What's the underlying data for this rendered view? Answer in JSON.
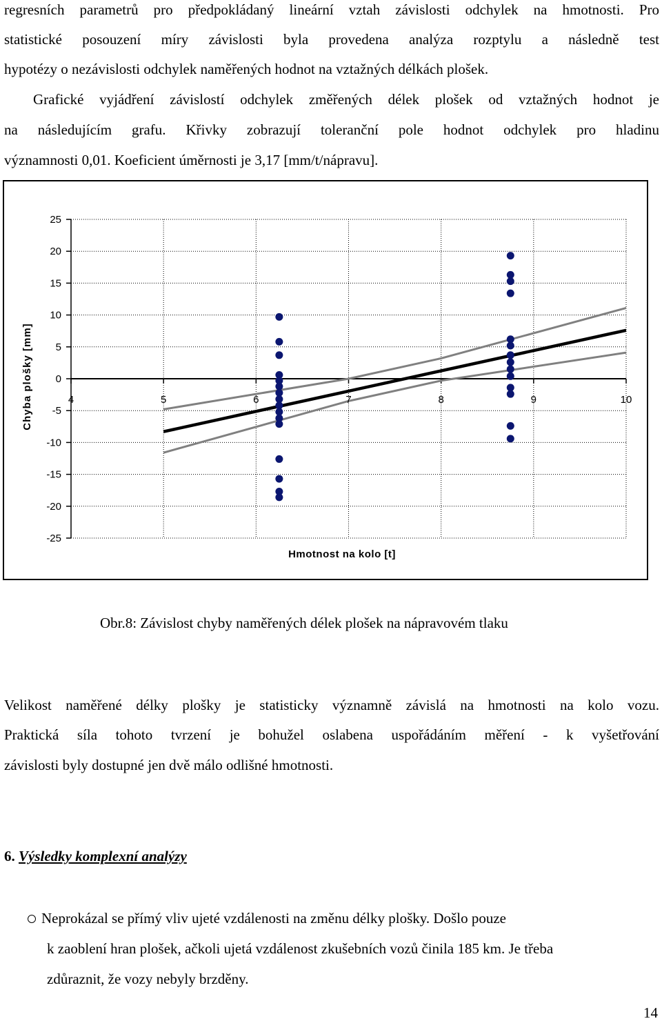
{
  "paragraph1": [
    "regresních parametrů pro předpokládaný lineární vztah závislosti odchylek na hmotnosti. Pro",
    "statistické posouzení míry závislosti byla provedena analýza rozptylu a následně test",
    "hypotézy o nezávislosti odchylek naměřených hodnot na vztažných délkách plošek.",
    "Grafické vyjádření závislostí odchylek změřených délek plošek od vztažných hodnot je",
    "na následujícím grafu. Křivky zobrazují toleranční pole hodnot odchylek pro hladinu",
    "významnosti 0,01. Koeficient úměrnosti je 3,17 [mm/t/nápravu]."
  ],
  "chart_data": {
    "type": "scatter",
    "xlabel": "Hmotnost na kolo [t]",
    "ylabel": "Chyba plošky [mm]",
    "xlim": [
      4,
      10
    ],
    "ylim": [
      -25,
      25
    ],
    "x_ticks": [
      "4",
      "5",
      "6",
      "7",
      "8",
      "9",
      "10"
    ],
    "y_ticks": [
      "25",
      "20",
      "15",
      "10",
      "5",
      "0",
      "-5",
      "-10",
      "-15",
      "-20",
      "-25"
    ],
    "grid": true,
    "points": [
      {
        "x": 6.25,
        "y": 9.7
      },
      {
        "x": 6.25,
        "y": 5.8
      },
      {
        "x": 6.25,
        "y": 3.7
      },
      {
        "x": 6.25,
        "y": 0.6
      },
      {
        "x": 6.25,
        "y": -0.3
      },
      {
        "x": 6.25,
        "y": -1.2
      },
      {
        "x": 6.25,
        "y": -2.2
      },
      {
        "x": 6.25,
        "y": -3.2
      },
      {
        "x": 6.25,
        "y": -4.2
      },
      {
        "x": 6.25,
        "y": -5.2
      },
      {
        "x": 6.25,
        "y": -6.2
      },
      {
        "x": 6.25,
        "y": -7.1
      },
      {
        "x": 6.25,
        "y": -12.6
      },
      {
        "x": 6.25,
        "y": -15.7
      },
      {
        "x": 6.25,
        "y": -17.7
      },
      {
        "x": 6.25,
        "y": -18.6
      },
      {
        "x": 8.75,
        "y": 19.3
      },
      {
        "x": 8.75,
        "y": 16.3
      },
      {
        "x": 8.75,
        "y": 15.3
      },
      {
        "x": 8.75,
        "y": 13.4
      },
      {
        "x": 8.75,
        "y": 6.2
      },
      {
        "x": 8.75,
        "y": 5.2
      },
      {
        "x": 8.75,
        "y": 3.7
      },
      {
        "x": 8.75,
        "y": 2.6
      },
      {
        "x": 8.75,
        "y": 1.5
      },
      {
        "x": 8.75,
        "y": 0.4
      },
      {
        "x": 8.75,
        "y": -1.4
      },
      {
        "x": 8.75,
        "y": -2.4
      },
      {
        "x": 8.75,
        "y": -7.4
      },
      {
        "x": 8.75,
        "y": -9.4
      }
    ],
    "lines": [
      {
        "role": "regression",
        "color": "#000000",
        "x": [
          5,
          10
        ],
        "y": [
          -8.3,
          7.6
        ]
      },
      {
        "role": "tolerance-upper",
        "color": "#808080",
        "x": [
          5,
          7,
          8,
          10
        ],
        "y": [
          -4.8,
          0,
          3.2,
          11.1
        ]
      },
      {
        "role": "tolerance-lower",
        "color": "#808080",
        "x": [
          5,
          7,
          8,
          10
        ],
        "y": [
          -11.6,
          -3.5,
          -0.3,
          4.1
        ]
      }
    ],
    "point_color": "#0b1670"
  },
  "caption": "Obr.8: Závislost chyby naměřených délek plošek na nápravovém tlaku",
  "paragraph2": [
    "Velikost naměřené délky plošky je statisticky významně závislá na hmotnosti na kolo vozu.",
    "Praktická síla tohoto tvrzení je bohužel oslabena uspořádáním měření - k vyšetřování",
    "závislosti byly dostupné jen dvě málo odlišné hmotnosti."
  ],
  "heading": {
    "number": "6.",
    "title": "Výsledky komplexní analýzy"
  },
  "bullet": [
    "Neprokázal se přímý vliv ujeté vzdálenosti na změnu délky plošky. Došlo pouze",
    "k zaoblení hran plošek, ačkoli ujetá vzdálenost zkušebních vozů činila 185 km. Je třeba",
    "zdůraznit, že vozy nebyly brzděny."
  ],
  "page_number": "14"
}
